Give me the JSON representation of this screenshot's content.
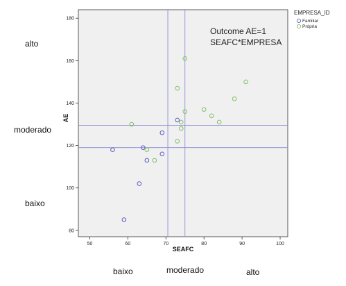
{
  "chart_data": {
    "type": "scatter",
    "title": "",
    "xlabel": "SEAFC",
    "ylabel": "AE",
    "xlim": [
      47,
      102
    ],
    "ylim": [
      77,
      184
    ],
    "xticks": [
      50,
      60,
      70,
      80,
      90,
      100
    ],
    "yticks": [
      80,
      100,
      120,
      140,
      160,
      180
    ],
    "grid": false,
    "legend": {
      "title": "EMPRESA_ID",
      "position": "top-right outside"
    },
    "annotation": [
      "Outcome AE=1",
      "SEAFC*EMPRESA"
    ],
    "reference_lines": {
      "vertical": [
        70.5,
        75
      ],
      "horizontal": [
        119,
        129.5
      ]
    },
    "series": [
      {
        "name": "Familiar",
        "color": "#5b5bbf",
        "x": [
          56,
          59,
          63,
          64,
          65,
          69,
          69,
          73
        ],
        "y": [
          118,
          85,
          102,
          119,
          113,
          126,
          116,
          132
        ]
      },
      {
        "name": "Própria",
        "color": "#7fbf6a",
        "x": [
          61,
          65,
          67,
          73,
          73,
          74,
          74,
          75,
          75,
          80,
          82,
          84,
          88,
          91
        ],
        "y": [
          130,
          118,
          113,
          122,
          147,
          131,
          128,
          161,
          136,
          137,
          134,
          131,
          142,
          150
        ]
      }
    ]
  },
  "side_labels": {
    "y": {
      "high": "alto",
      "mid": "moderado",
      "low": "baixo"
    },
    "x": {
      "low": "baixo",
      "mid": "moderado",
      "high": "alto"
    }
  }
}
